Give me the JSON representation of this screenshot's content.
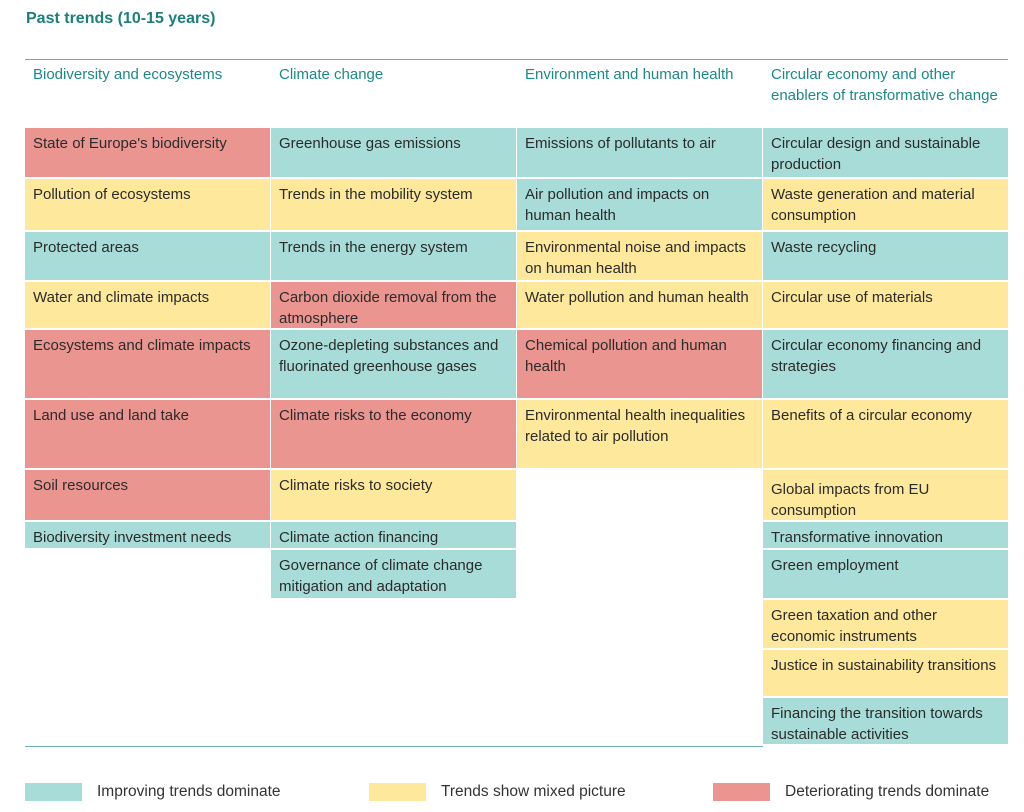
{
  "title": "Past trends (10-15 years)",
  "colors": {
    "improving": "#a8dcd8",
    "mixed": "#fde89c",
    "deteriorating": "#eb9590",
    "accent": "#1b7f7c"
  },
  "columns": [
    {
      "header": "Biodiversity and ecosystems",
      "items": [
        {
          "label": "State of Europe's biodiversity",
          "status": "deteriorating"
        },
        {
          "label": "Pollution of ecosystems",
          "status": "mixed"
        },
        {
          "label": "Protected areas",
          "status": "improving"
        },
        {
          "label": "Water and climate impacts",
          "status": "mixed"
        },
        {
          "label": "Ecosystems and climate impacts",
          "status": "deteriorating"
        },
        {
          "label": "Land use and land take",
          "status": "deteriorating"
        },
        {
          "label": "Soil resources",
          "status": "deteriorating"
        },
        {
          "label": "Biodiversity investment needs",
          "status": "improving"
        }
      ]
    },
    {
      "header": "Climate change",
      "items": [
        {
          "label": "Greenhouse gas emissions",
          "status": "improving"
        },
        {
          "label": "Trends in the mobility system",
          "status": "mixed"
        },
        {
          "label": "Trends in the energy system",
          "status": "improving"
        },
        {
          "label": "Carbon dioxide removal from the atmosphere",
          "status": "deteriorating"
        },
        {
          "label": "Ozone-depleting substances and fluorinated greenhouse gases",
          "status": "improving"
        },
        {
          "label": "Climate risks to the economy",
          "status": "deteriorating"
        },
        {
          "label": "Climate risks to society",
          "status": "mixed"
        },
        {
          "label": "Climate action financing",
          "status": "improving"
        },
        {
          "label": "Governance of climate change mitigation and adaptation",
          "status": "improving"
        }
      ]
    },
    {
      "header": "Environment and human health",
      "items": [
        {
          "label": "Emissions of pollutants to air",
          "status": "improving"
        },
        {
          "label": "Air pollution and impacts on human health",
          "status": "improving"
        },
        {
          "label": "Environmental noise and impacts on human health",
          "status": "mixed"
        },
        {
          "label": "Water pollution and human health",
          "status": "mixed"
        },
        {
          "label": "Chemical pollution and human health",
          "status": "deteriorating"
        },
        {
          "label": "Environmental health inequalities related to air pollution",
          "status": "mixed"
        }
      ]
    },
    {
      "header": "Circular economy and other enablers of transformative change",
      "items": [
        {
          "label": "Circular design and sustainable production",
          "status": "improving"
        },
        {
          "label": "Waste generation and material consumption",
          "status": "mixed"
        },
        {
          "label": "Waste recycling",
          "status": "improving"
        },
        {
          "label": "Circular use of materials",
          "status": "mixed"
        },
        {
          "label": "Circular economy financing and strategies",
          "status": "improving"
        },
        {
          "label": "Benefits of a circular economy",
          "status": "mixed"
        },
        {
          "label": "Global impacts from EU consumption",
          "status": "mixed"
        },
        {
          "label": "Transformative innovation",
          "status": "improving"
        },
        {
          "label": "Green employment",
          "status": "improving"
        },
        {
          "label": "Green taxation and other economic instruments",
          "status": "mixed"
        },
        {
          "label": "Justice in sustainability transitions",
          "status": "mixed"
        },
        {
          "label": "Financing the transition towards sustainable activities",
          "status": "improving"
        }
      ]
    }
  ],
  "legend": [
    {
      "label": "Improving trends dominate",
      "status": "improving"
    },
    {
      "label": "Trends show mixed picture",
      "status": "mixed"
    },
    {
      "label": "Deteriorating trends dominate",
      "status": "deteriorating"
    }
  ]
}
